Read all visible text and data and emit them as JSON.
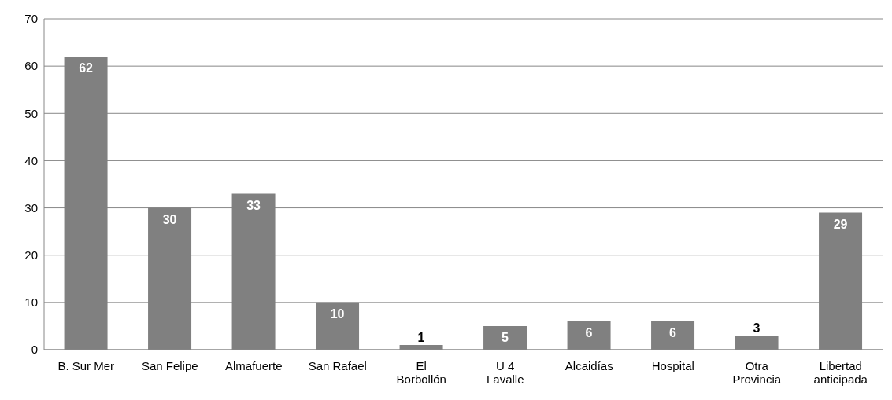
{
  "chart_data": {
    "type": "bar",
    "categories": [
      "B. Sur Mer",
      "San Felipe",
      "Almafuerte",
      "San Rafael",
      "El Borbollón",
      "U 4 Lavalle",
      "Alcaidías",
      "Hospital",
      "Otra Provincia",
      "Libertad anticipada"
    ],
    "values": [
      62,
      30,
      33,
      10,
      1,
      5,
      6,
      6,
      3,
      29
    ],
    "color": "#808080",
    "ylim": [
      0,
      70
    ],
    "yticks": [
      0,
      10,
      20,
      30,
      40,
      50,
      60,
      70
    ],
    "grid": "y",
    "data_labels": true
  }
}
